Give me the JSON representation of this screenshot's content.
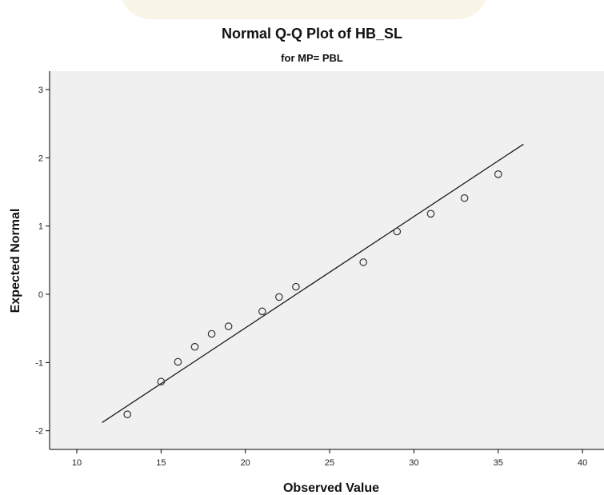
{
  "chart_data": {
    "type": "scatter",
    "title": "Normal Q-Q Plot of HB_SL",
    "subtitle": "for MP= PBL",
    "xlabel": "Observed Value",
    "ylabel": "Expected Normal",
    "xlim": [
      8.5,
      41.5
    ],
    "ylim": [
      -2.25,
      3.1
    ],
    "xticks": [
      "10",
      "15",
      "20",
      "25",
      "30",
      "35",
      "40"
    ],
    "yticks": [
      "-2",
      "-1",
      "0",
      "1",
      "2",
      "3"
    ],
    "grid": false,
    "points": [
      {
        "x": 13,
        "y": -1.76
      },
      {
        "x": 15,
        "y": -1.28
      },
      {
        "x": 16,
        "y": -0.99
      },
      {
        "x": 17,
        "y": -0.77
      },
      {
        "x": 18,
        "y": -0.58
      },
      {
        "x": 19,
        "y": -0.47
      },
      {
        "x": 21,
        "y": -0.25
      },
      {
        "x": 22,
        "y": -0.04
      },
      {
        "x": 23,
        "y": 0.11
      },
      {
        "x": 27,
        "y": 0.47
      },
      {
        "x": 29,
        "y": 0.92
      },
      {
        "x": 31,
        "y": 1.18
      },
      {
        "x": 33,
        "y": 1.41
      },
      {
        "x": 35,
        "y": 1.76
      }
    ],
    "reference_line": {
      "x": [
        11.5,
        36.5
      ],
      "y": [
        -1.88,
        2.2
      ]
    },
    "colors": {
      "plot_background": "#f0f0f0",
      "marker_stroke": "#333333",
      "line": "#1a1a1a"
    }
  }
}
